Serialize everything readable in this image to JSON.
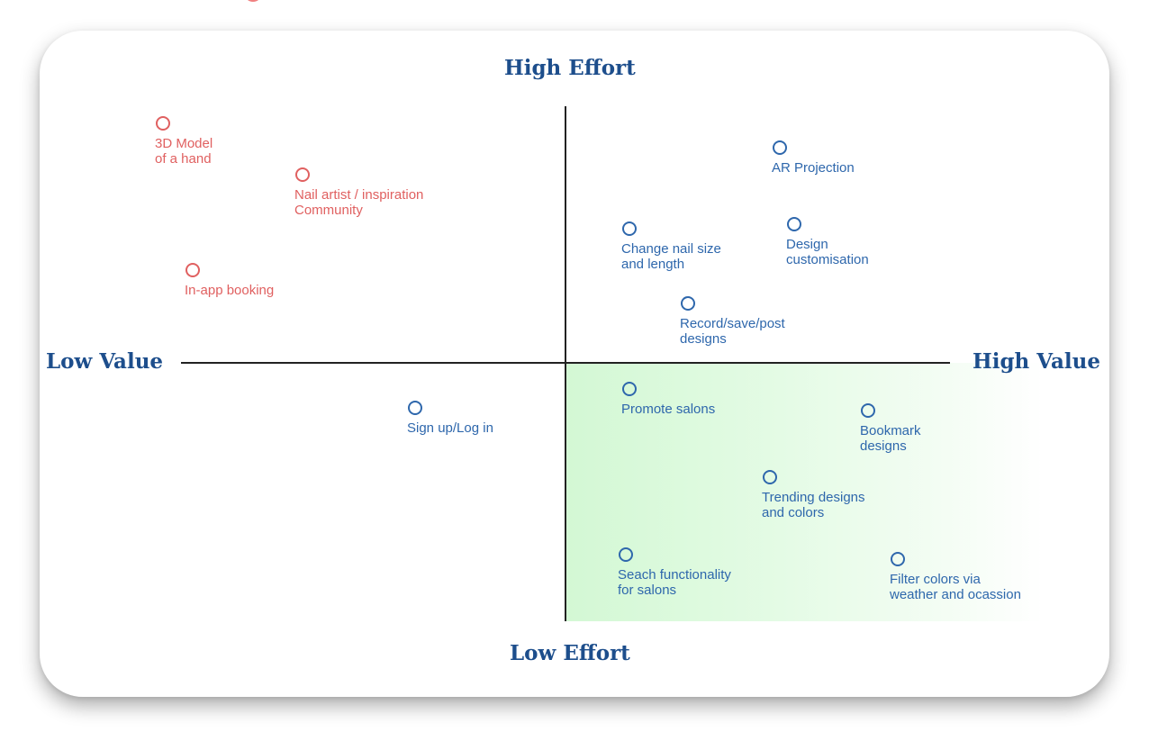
{
  "axes": {
    "top": "High Effort",
    "bottom": "Low Effort",
    "left": "Low Value",
    "right": "High Value"
  },
  "colors": {
    "low_value_items": "#e06060",
    "high_value_items": "#2e67ac",
    "axis_labels": "#1d4e8c",
    "quick_win_zone": "#d3f8d4"
  },
  "items": [
    {
      "text": "3D Model\nof a hand",
      "quadrant": "low-value-high-effort"
    },
    {
      "text": "Nail artist / inspiration\nCommunity",
      "quadrant": "low-value-high-effort"
    },
    {
      "text": "In-app booking",
      "quadrant": "low-value-high-effort"
    },
    {
      "text": "AR Projection",
      "quadrant": "high-value-high-effort"
    },
    {
      "text": "Change nail size\nand length",
      "quadrant": "high-value-high-effort"
    },
    {
      "text": "Design\ncustomisation",
      "quadrant": "high-value-high-effort"
    },
    {
      "text": "Record/save/post\ndesigns",
      "quadrant": "high-value-high-effort"
    },
    {
      "text": "Sign up/Log in",
      "quadrant": "low-value-low-effort"
    },
    {
      "text": "Promote salons",
      "quadrant": "high-value-low-effort"
    },
    {
      "text": "Bookmark\ndesigns",
      "quadrant": "high-value-low-effort"
    },
    {
      "text": "Trending designs\nand colors",
      "quadrant": "high-value-low-effort"
    },
    {
      "text": "Seach functionality\nfor salons",
      "quadrant": "high-value-low-effort"
    },
    {
      "text": "Filter colors via\nweather and ocassion",
      "quadrant": "high-value-low-effort"
    }
  ]
}
